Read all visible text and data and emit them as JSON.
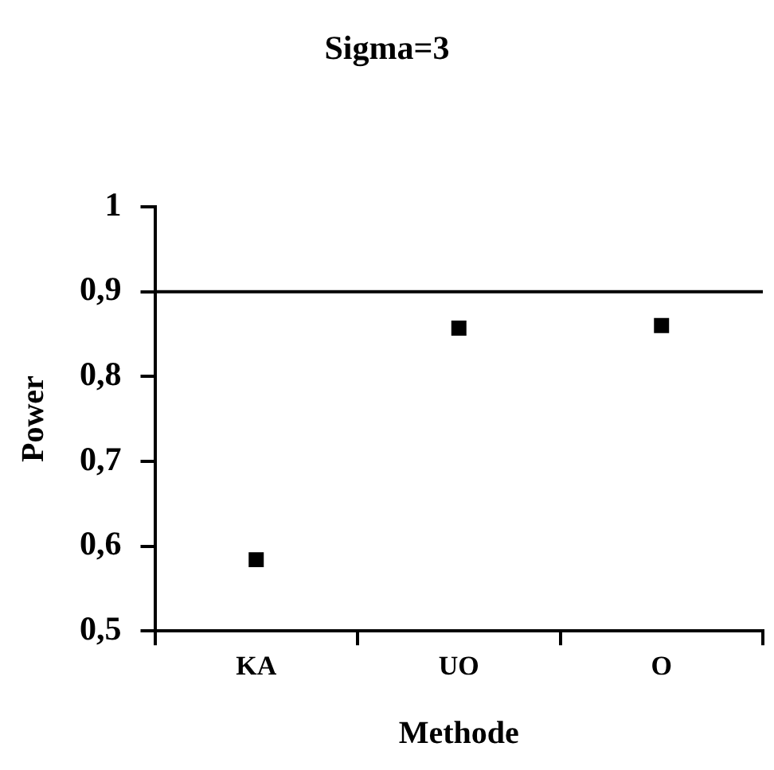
{
  "chart_data": {
    "type": "scatter",
    "title": "Sigma=3",
    "xlabel": "Methode",
    "ylabel": "Power",
    "categories": [
      "KA",
      "UO",
      "O"
    ],
    "series": [
      {
        "color": "#000000",
        "values": [
          0.584,
          0.857,
          0.86
        ]
      }
    ],
    "ylim": [
      0.5,
      1
    ],
    "yticks": [
      {
        "value": 0.5,
        "label": "0,5"
      },
      {
        "value": 0.6,
        "label": "0,6"
      },
      {
        "value": 0.7,
        "label": "0,7"
      },
      {
        "value": 0.8,
        "label": "0,8"
      },
      {
        "value": 0.9,
        "label": "0,9"
      },
      {
        "value": 1,
        "label": "1"
      }
    ],
    "ref_lines": [
      {
        "axis": "y",
        "value": 0.9,
        "color": "#000000"
      }
    ],
    "marker": "square",
    "grid": false,
    "legend": false
  }
}
